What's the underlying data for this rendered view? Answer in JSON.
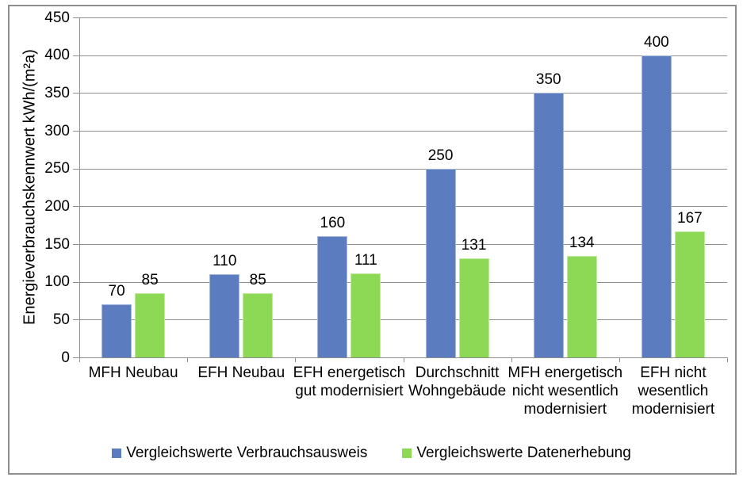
{
  "chart_data": {
    "type": "bar",
    "title": "",
    "ylabel": "Energieverbrauchskennwert kWh/(m²a)",
    "xlabel": "",
    "ylim": [
      0,
      450
    ],
    "yticks": [
      0,
      50,
      100,
      150,
      200,
      250,
      300,
      350,
      400,
      450
    ],
    "grid": "horizontal",
    "legend_position": "bottom",
    "categories": [
      "MFH Neubau",
      "EFH Neubau",
      "EFH energetisch gut modernisiert",
      "Durchschnitt Wohngebäude",
      "MFH energetisch nicht wesentlich modernisiert",
      "EFH nicht wesentlich modernisiert"
    ],
    "series": [
      {
        "name": "Vergleichswerte Verbrauchsausweis",
        "color": "#5B7CBE",
        "values": [
          70,
          110,
          160,
          250,
          350,
          400
        ]
      },
      {
        "name": "Vergleichswerte Datenerhebung",
        "color": "#8DD855",
        "values": [
          85,
          85,
          111,
          131,
          134,
          167
        ]
      }
    ],
    "colors": {
      "grid": "#8E8E8E",
      "axis": "#8E8E8E",
      "frame": "#8E8E8E",
      "text": "#000000"
    }
  }
}
